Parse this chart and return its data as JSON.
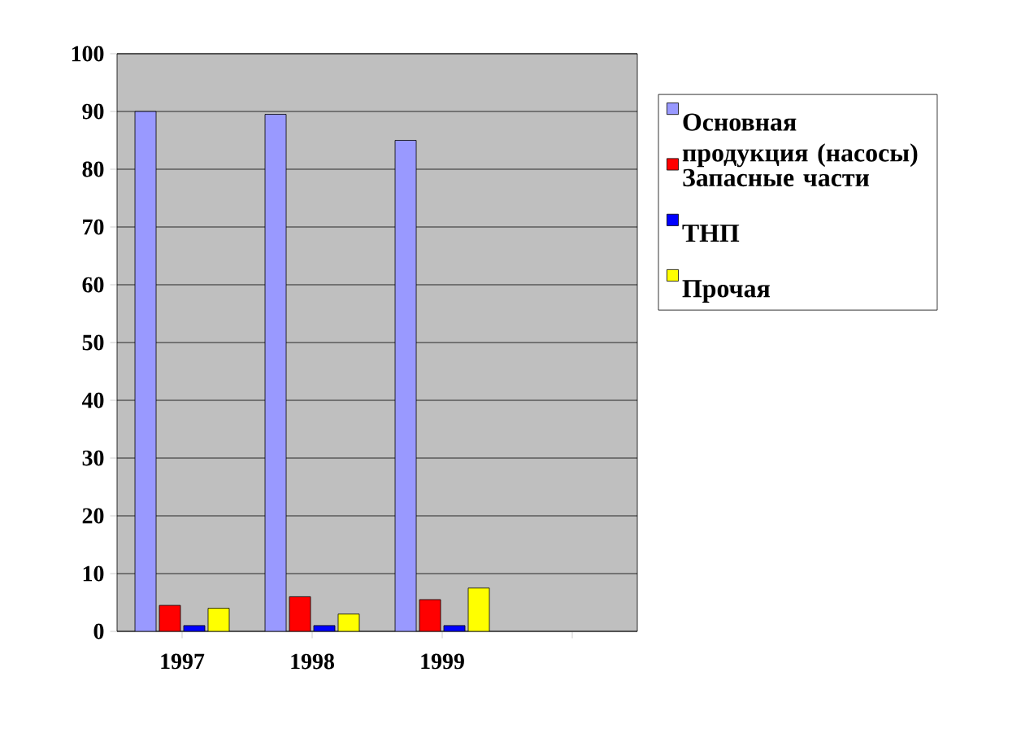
{
  "chart_data": {
    "type": "bar",
    "categories": [
      "1997",
      "1998",
      "1999",
      null
    ],
    "series": [
      {
        "name": "Основная продукция (насосы)",
        "color": "#9999ff",
        "values": [
          90,
          89.5,
          85,
          null
        ]
      },
      {
        "name": "Запасные части",
        "color": "#ff0000",
        "values": [
          4.5,
          6,
          5.5,
          null
        ]
      },
      {
        "name": "ТНП",
        "color": "#0000ff",
        "values": [
          1,
          1,
          1,
          null
        ]
      },
      {
        "name": "Прочая",
        "color": "#ffff00",
        "values": [
          4,
          3,
          7.5,
          null
        ]
      }
    ],
    "ylim": [
      0,
      100
    ],
    "yticks": [
      0,
      10,
      20,
      30,
      40,
      50,
      60,
      70,
      80,
      90,
      100
    ],
    "grid": "y",
    "legend": "right"
  }
}
